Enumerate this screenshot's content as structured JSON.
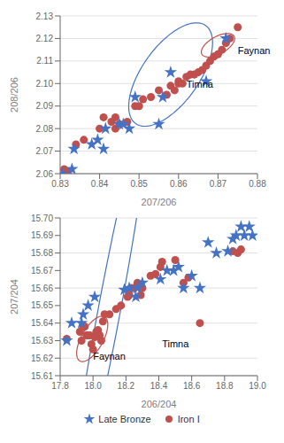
{
  "chart_data": [
    {
      "type": "scatter",
      "xlabel": "207/206",
      "ylabel": "208/206",
      "xlim": [
        0.83,
        0.88
      ],
      "ylim": [
        2.06,
        2.13
      ],
      "xticks": [
        0.83,
        0.84,
        0.85,
        0.86,
        0.87,
        0.88
      ],
      "yticks": [
        2.06,
        2.07,
        2.08,
        2.09,
        {
          "value": 2.1,
          "label": "2.10"
        },
        2.11,
        2.12,
        2.13
      ],
      "grid": "y",
      "series": [
        {
          "name": "Late Bronze",
          "color": "#4472C4",
          "marker": "star",
          "x": [
            0.8305,
            0.833,
            0.8335,
            0.838,
            0.8395,
            0.841,
            0.8415,
            0.845,
            0.846,
            0.8475,
            0.849,
            0.855,
            0.856,
            0.858,
            0.867,
            0.872
          ],
          "y": [
            2.06,
            2.062,
            2.071,
            2.073,
            2.075,
            2.071,
            2.08,
            2.082,
            2.082,
            2.08,
            2.094,
            2.082,
            2.094,
            2.105,
            2.101,
            2.12
          ]
        },
        {
          "name": "Iron I",
          "color": "#C0504D",
          "marker": "circle",
          "x": [
            0.831,
            0.832,
            0.834,
            0.836,
            0.84,
            0.841,
            0.843,
            0.844,
            0.844,
            0.845,
            0.847,
            0.849,
            0.85,
            0.851,
            0.853,
            0.855,
            0.857,
            0.858,
            0.859,
            0.86,
            0.86,
            0.861,
            0.862,
            0.863,
            0.864,
            0.865,
            0.866,
            0.867,
            0.868,
            0.869,
            0.87,
            0.871,
            0.872,
            0.873,
            0.875
          ],
          "y": [
            2.062,
            2.061,
            2.073,
            2.075,
            2.08,
            2.085,
            2.083,
            2.08,
            2.085,
            2.082,
            2.083,
            2.09,
            2.09,
            2.093,
            2.094,
            2.097,
            2.095,
            2.099,
            2.097,
            2.1,
            2.101,
            2.1,
            2.103,
            2.104,
            2.104,
            2.105,
            2.106,
            2.108,
            2.11,
            2.112,
            2.113,
            2.115,
            2.118,
            2.12,
            2.125
          ]
        }
      ],
      "ellipses": [
        {
          "color": "#4472C4",
          "cx": 0.858,
          "cy": 2.104,
          "width": 0.048,
          "height": 0.016,
          "angle": 72
        },
        {
          "color": "#C0504D",
          "cx": 0.87,
          "cy": 2.117,
          "width": 0.012,
          "height": 0.006,
          "angle": 55
        }
      ],
      "annotations": [
        {
          "text": "Timna",
          "x": 0.862,
          "y": 2.098
        },
        {
          "text": "Faynan",
          "x": 0.875,
          "y": 2.113
        }
      ]
    },
    {
      "type": "scatter",
      "xlabel": "206/204",
      "ylabel": "207/204",
      "xlim": [
        17.8,
        19.0
      ],
      "ylim": [
        15.61,
        15.7
      ],
      "xticks": [
        17.8,
        {
          "value": 18,
          "label": "18.0"
        },
        18.2,
        18.4,
        18.6,
        18.8,
        {
          "value": 19,
          "label": "19.0"
        }
      ],
      "yticks": [
        15.61,
        15.62,
        15.63,
        15.64,
        15.65,
        15.66,
        15.67,
        15.68,
        15.69,
        {
          "value": 15.7,
          "label": "15.70"
        }
      ],
      "grid": "y",
      "legend": "bottom",
      "series": [
        {
          "name": "Late Bronze",
          "color": "#4472C4",
          "marker": "star",
          "x": [
            17.84,
            17.87,
            17.93,
            17.94,
            17.97,
            18.01,
            18.19,
            18.22,
            18.26,
            18.27,
            18.3,
            18.41,
            18.45,
            18.49,
            18.52,
            18.55,
            18.6,
            18.65,
            18.7,
            18.75,
            18.82,
            18.85,
            18.87,
            18.9,
            18.92,
            18.95,
            18.97
          ],
          "y": [
            15.63,
            15.64,
            15.64,
            15.645,
            15.65,
            15.655,
            15.659,
            15.66,
            15.655,
            15.66,
            15.663,
            15.665,
            15.67,
            15.67,
            15.672,
            15.66,
            15.667,
            15.66,
            15.686,
            15.68,
            15.681,
            15.688,
            15.69,
            15.695,
            15.69,
            15.695,
            15.69
          ]
        },
        {
          "name": "Iron I",
          "color": "#C0504D",
          "marker": "circle",
          "x": [
            17.84,
            17.92,
            17.93,
            17.94,
            17.95,
            17.96,
            17.97,
            17.98,
            17.99,
            18.0,
            18.01,
            18.02,
            18.03,
            18.04,
            18.05,
            18.06,
            18.07,
            18.1,
            18.14,
            18.17,
            18.21,
            18.22,
            18.23,
            18.25,
            18.27,
            18.29,
            18.3,
            18.35,
            18.38,
            18.41,
            18.42,
            18.5,
            18.55,
            18.58,
            18.65,
            18.85,
            18.88,
            18.9
          ],
          "y": [
            15.631,
            15.635,
            15.63,
            15.638,
            15.638,
            15.633,
            15.633,
            15.633,
            15.628,
            15.625,
            15.632,
            15.635,
            15.636,
            15.633,
            15.63,
            15.641,
            15.645,
            15.645,
            15.648,
            15.65,
            15.655,
            15.656,
            15.66,
            15.66,
            15.663,
            15.656,
            15.66,
            15.667,
            15.668,
            15.672,
            15.675,
            15.676,
            15.663,
            15.666,
            15.64,
            15.681,
            15.68,
            15.682
          ]
        }
      ],
      "ellipses": [
        {
          "color": "#4472C4",
          "cx": 18.1,
          "cy": 15.648,
          "width": 0.52,
          "height": 0.06,
          "angle": 25
        },
        {
          "color": "#C0504D",
          "cx": 17.995,
          "cy": 15.631,
          "width": 0.19,
          "height": 0.02,
          "angle": 5
        }
      ],
      "annotations": [
        {
          "text": "Timna",
          "x": 18.42,
          "y": 15.626
        },
        {
          "text": "Faynan",
          "x": 18.0,
          "y": 15.619
        }
      ]
    }
  ]
}
